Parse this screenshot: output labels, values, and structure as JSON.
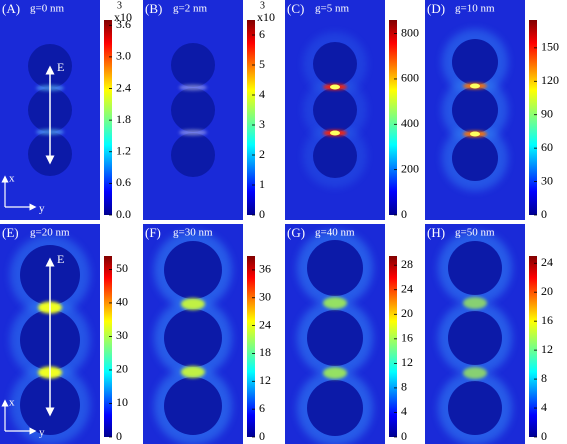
{
  "panels": [
    {
      "label": "(A)",
      "title": "g=0 nm",
      "multiplier": "x10",
      "exponent": "3",
      "range": [
        0,
        3.7
      ],
      "ticks": [
        {
          "value": 0,
          "label": "0.0"
        },
        {
          "value": 0.6,
          "label": "0.6"
        },
        {
          "value": 1.2,
          "label": "1.2"
        },
        {
          "value": 1.8,
          "label": "1.8"
        },
        {
          "value": 2.4,
          "label": "2.4"
        },
        {
          "value": 3.0,
          "label": "3.0"
        },
        {
          "value": 3.6,
          "label": "3.6"
        }
      ],
      "field_label": "E",
      "axis_x": "x",
      "axis_y": "y"
    },
    {
      "label": "(B)",
      "title": "g=2 nm",
      "multiplier": "x10",
      "exponent": "3",
      "range": [
        0,
        6.5
      ],
      "ticks": [
        0,
        1,
        2,
        3,
        4,
        5,
        6
      ]
    },
    {
      "label": "(C)",
      "title": "g=5 nm",
      "range": [
        0,
        860
      ],
      "ticks": [
        0,
        200,
        400,
        600,
        800
      ]
    },
    {
      "label": "(D)",
      "title": "g=10 nm",
      "range": [
        0,
        175
      ],
      "ticks": [
        0,
        30,
        60,
        90,
        120,
        150
      ]
    },
    {
      "label": "(E)",
      "title": "g=20 nm",
      "range": [
        0,
        54
      ],
      "ticks": [
        0,
        10,
        20,
        30,
        40,
        50
      ],
      "field_label": "E",
      "axis_x": "x",
      "axis_y": "y"
    },
    {
      "label": "(F)",
      "title": "g=30 nm",
      "range": [
        0,
        39
      ],
      "ticks": [
        0,
        6,
        12,
        18,
        24,
        30,
        36
      ]
    },
    {
      "label": "(G)",
      "title": "g=40 nm",
      "range": [
        0,
        29.5
      ],
      "ticks": [
        0,
        4,
        8,
        12,
        16,
        20,
        24,
        28
      ]
    },
    {
      "label": "(H)",
      "title": "g=50 nm",
      "range": [
        0,
        25
      ],
      "ticks": [
        0,
        4,
        8,
        12,
        16,
        20,
        24
      ]
    }
  ]
}
